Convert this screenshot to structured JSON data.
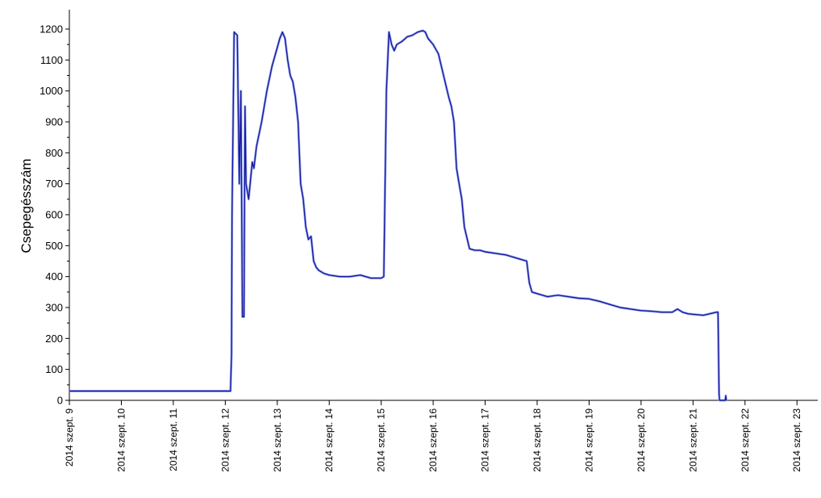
{
  "chart_data": {
    "type": "line",
    "title": "",
    "xlabel": "",
    "ylabel": "Csepegésszám",
    "ylim": [
      0,
      1200
    ],
    "y_ticks": [
      0,
      100,
      200,
      300,
      400,
      500,
      600,
      700,
      800,
      900,
      1000,
      1100,
      1200
    ],
    "x_range_days": [
      9,
      23.4
    ],
    "x_ticks": [
      {
        "day": 9,
        "label": "2014 szept. 9"
      },
      {
        "day": 10,
        "label": "2014 szept. 10"
      },
      {
        "day": 11,
        "label": "2014 szept. 11"
      },
      {
        "day": 12,
        "label": "2014 szept. 12"
      },
      {
        "day": 13,
        "label": "2014 szept. 13"
      },
      {
        "day": 14,
        "label": "2014 szept. 14"
      },
      {
        "day": 15,
        "label": "2014 szept. 15"
      },
      {
        "day": 16,
        "label": "2014 szept. 16"
      },
      {
        "day": 17,
        "label": "2014 szept. 17"
      },
      {
        "day": 18,
        "label": "2014 szept. 18"
      },
      {
        "day": 19,
        "label": "2014 szept. 19"
      },
      {
        "day": 20,
        "label": "2014 szept. 20"
      },
      {
        "day": 21,
        "label": "2014 szept. 21"
      },
      {
        "day": 22,
        "label": "2014 szept. 22"
      },
      {
        "day": 23,
        "label": "2014 szept. 23"
      }
    ],
    "grid": false,
    "colors": {
      "line": "#1a1aa0",
      "line_shadow": "#9fb0f0",
      "axis": "#000000"
    },
    "series": [
      {
        "x": [
          9.0,
          12.1,
          12.12,
          12.13,
          12.17,
          12.23,
          12.27,
          12.3,
          12.33,
          12.36,
          12.38,
          12.4,
          12.45,
          12.52,
          12.55,
          12.6,
          12.7,
          12.8,
          12.9,
          13.0,
          13.05,
          13.1,
          13.15,
          13.2,
          13.25,
          13.3,
          13.35,
          13.4,
          13.45,
          13.5,
          13.55,
          13.6,
          13.65,
          13.7,
          13.75,
          13.8,
          13.9,
          14.0,
          14.2,
          14.4,
          14.6,
          14.7,
          14.8,
          14.9,
          15.0,
          15.05,
          15.1,
          15.15,
          15.2,
          15.25,
          15.3,
          15.4,
          15.5,
          15.6,
          15.7,
          15.8,
          15.85,
          15.9,
          16.0,
          16.1,
          16.2,
          16.3,
          16.35,
          16.4,
          16.45,
          16.5,
          16.55,
          16.6,
          16.7,
          16.8,
          16.9,
          17.0,
          17.2,
          17.4,
          17.6,
          17.8,
          17.85,
          17.9,
          18.0,
          18.2,
          18.4,
          18.6,
          18.8,
          19.0,
          19.2,
          19.4,
          19.6,
          19.8,
          20.0,
          20.2,
          20.4,
          20.6,
          20.7,
          20.8,
          20.9,
          21.0,
          21.2,
          21.45,
          21.48,
          21.5,
          21.51,
          21.52,
          21.62,
          21.63,
          21.64
        ],
        "y": [
          30,
          30,
          150,
          600,
          1190,
          1180,
          700,
          1000,
          270,
          270,
          950,
          700,
          650,
          770,
          750,
          820,
          900,
          1000,
          1080,
          1140,
          1170,
          1190,
          1170,
          1100,
          1050,
          1030,
          980,
          900,
          700,
          650,
          560,
          520,
          530,
          450,
          430,
          420,
          410,
          405,
          400,
          400,
          405,
          400,
          395,
          395,
          395,
          400,
          1000,
          1190,
          1150,
          1130,
          1150,
          1160,
          1175,
          1180,
          1190,
          1195,
          1190,
          1170,
          1150,
          1120,
          1050,
          980,
          950,
          900,
          750,
          700,
          650,
          560,
          490,
          485,
          485,
          480,
          475,
          470,
          460,
          450,
          380,
          350,
          345,
          335,
          340,
          335,
          330,
          328,
          320,
          310,
          300,
          295,
          290,
          288,
          285,
          285,
          295,
          285,
          280,
          278,
          275,
          285,
          285,
          20,
          0,
          0,
          0,
          15,
          0
        ]
      }
    ]
  }
}
